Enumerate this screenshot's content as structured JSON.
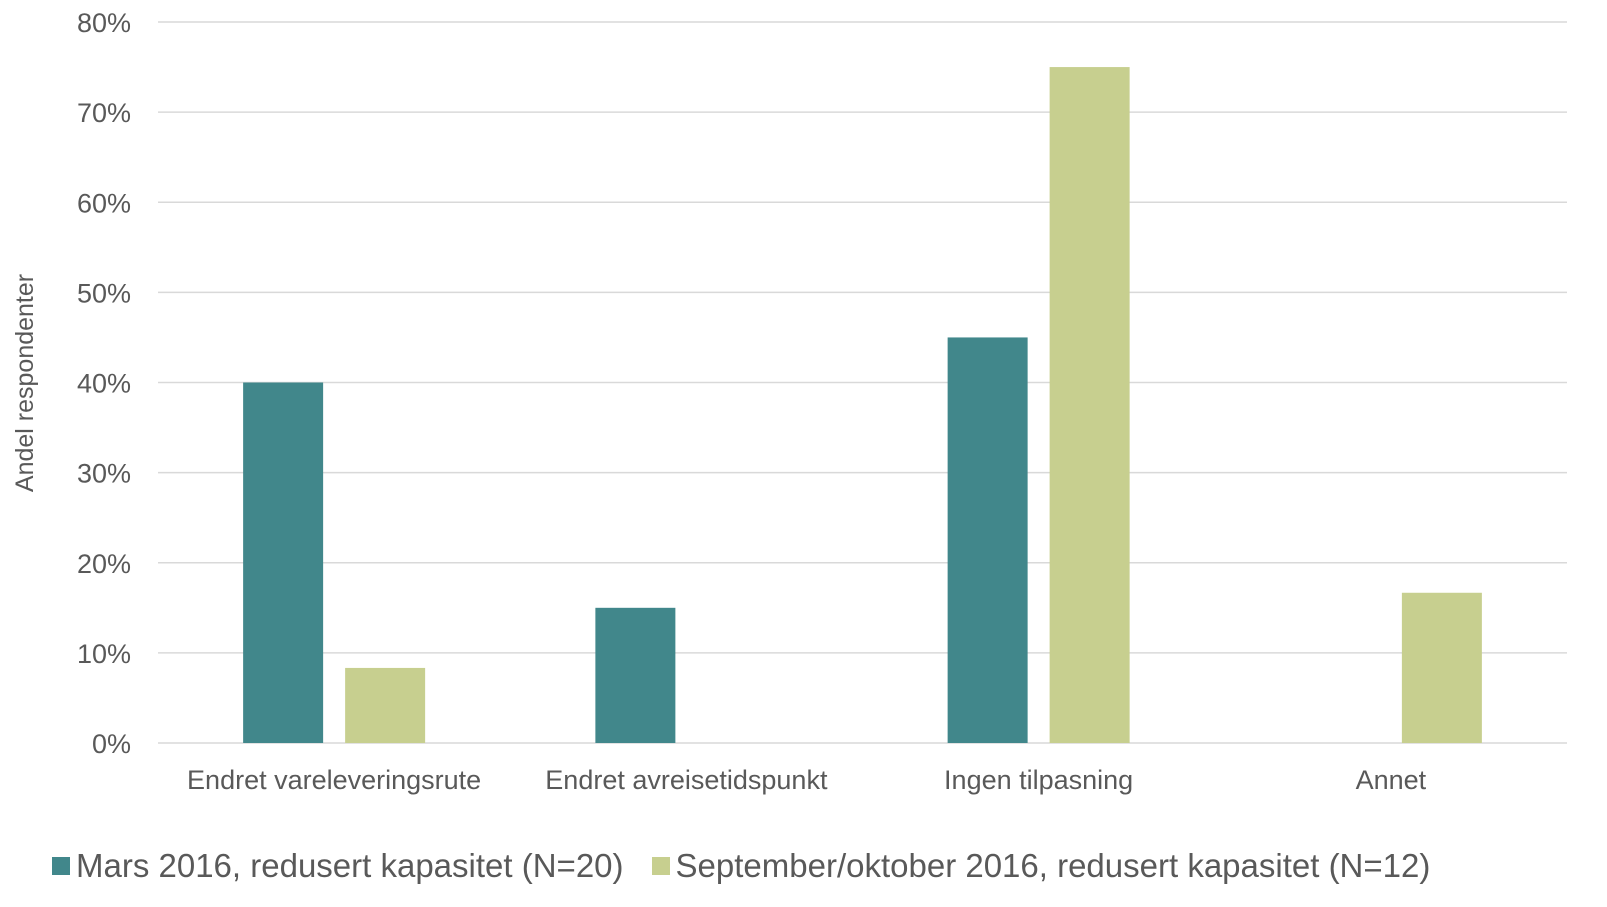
{
  "chart_data": {
    "type": "bar",
    "title": "",
    "xlabel": "",
    "ylabel": "Andel respondenter",
    "ylim": [
      0,
      0.8
    ],
    "yticks": [
      "0%",
      "10%",
      "20%",
      "30%",
      "40%",
      "50%",
      "60%",
      "70%",
      "80%"
    ],
    "grid": true,
    "legend_position": "bottom",
    "categories": [
      "Endret vareleveringsrute",
      "Endret avreisetidspunkt",
      "Ingen tilpasning",
      "Annet"
    ],
    "series": [
      {
        "name": "Mars 2016, redusert kapasitet (N=20)",
        "color": "#41878b",
        "values": [
          0.4,
          0.15,
          0.45,
          0.0
        ]
      },
      {
        "name": "September/oktober 2016, redusert kapasitet (N=12)",
        "color": "#c7cf8f",
        "values": [
          0.0833,
          0.0,
          0.75,
          0.1667
        ]
      }
    ]
  }
}
